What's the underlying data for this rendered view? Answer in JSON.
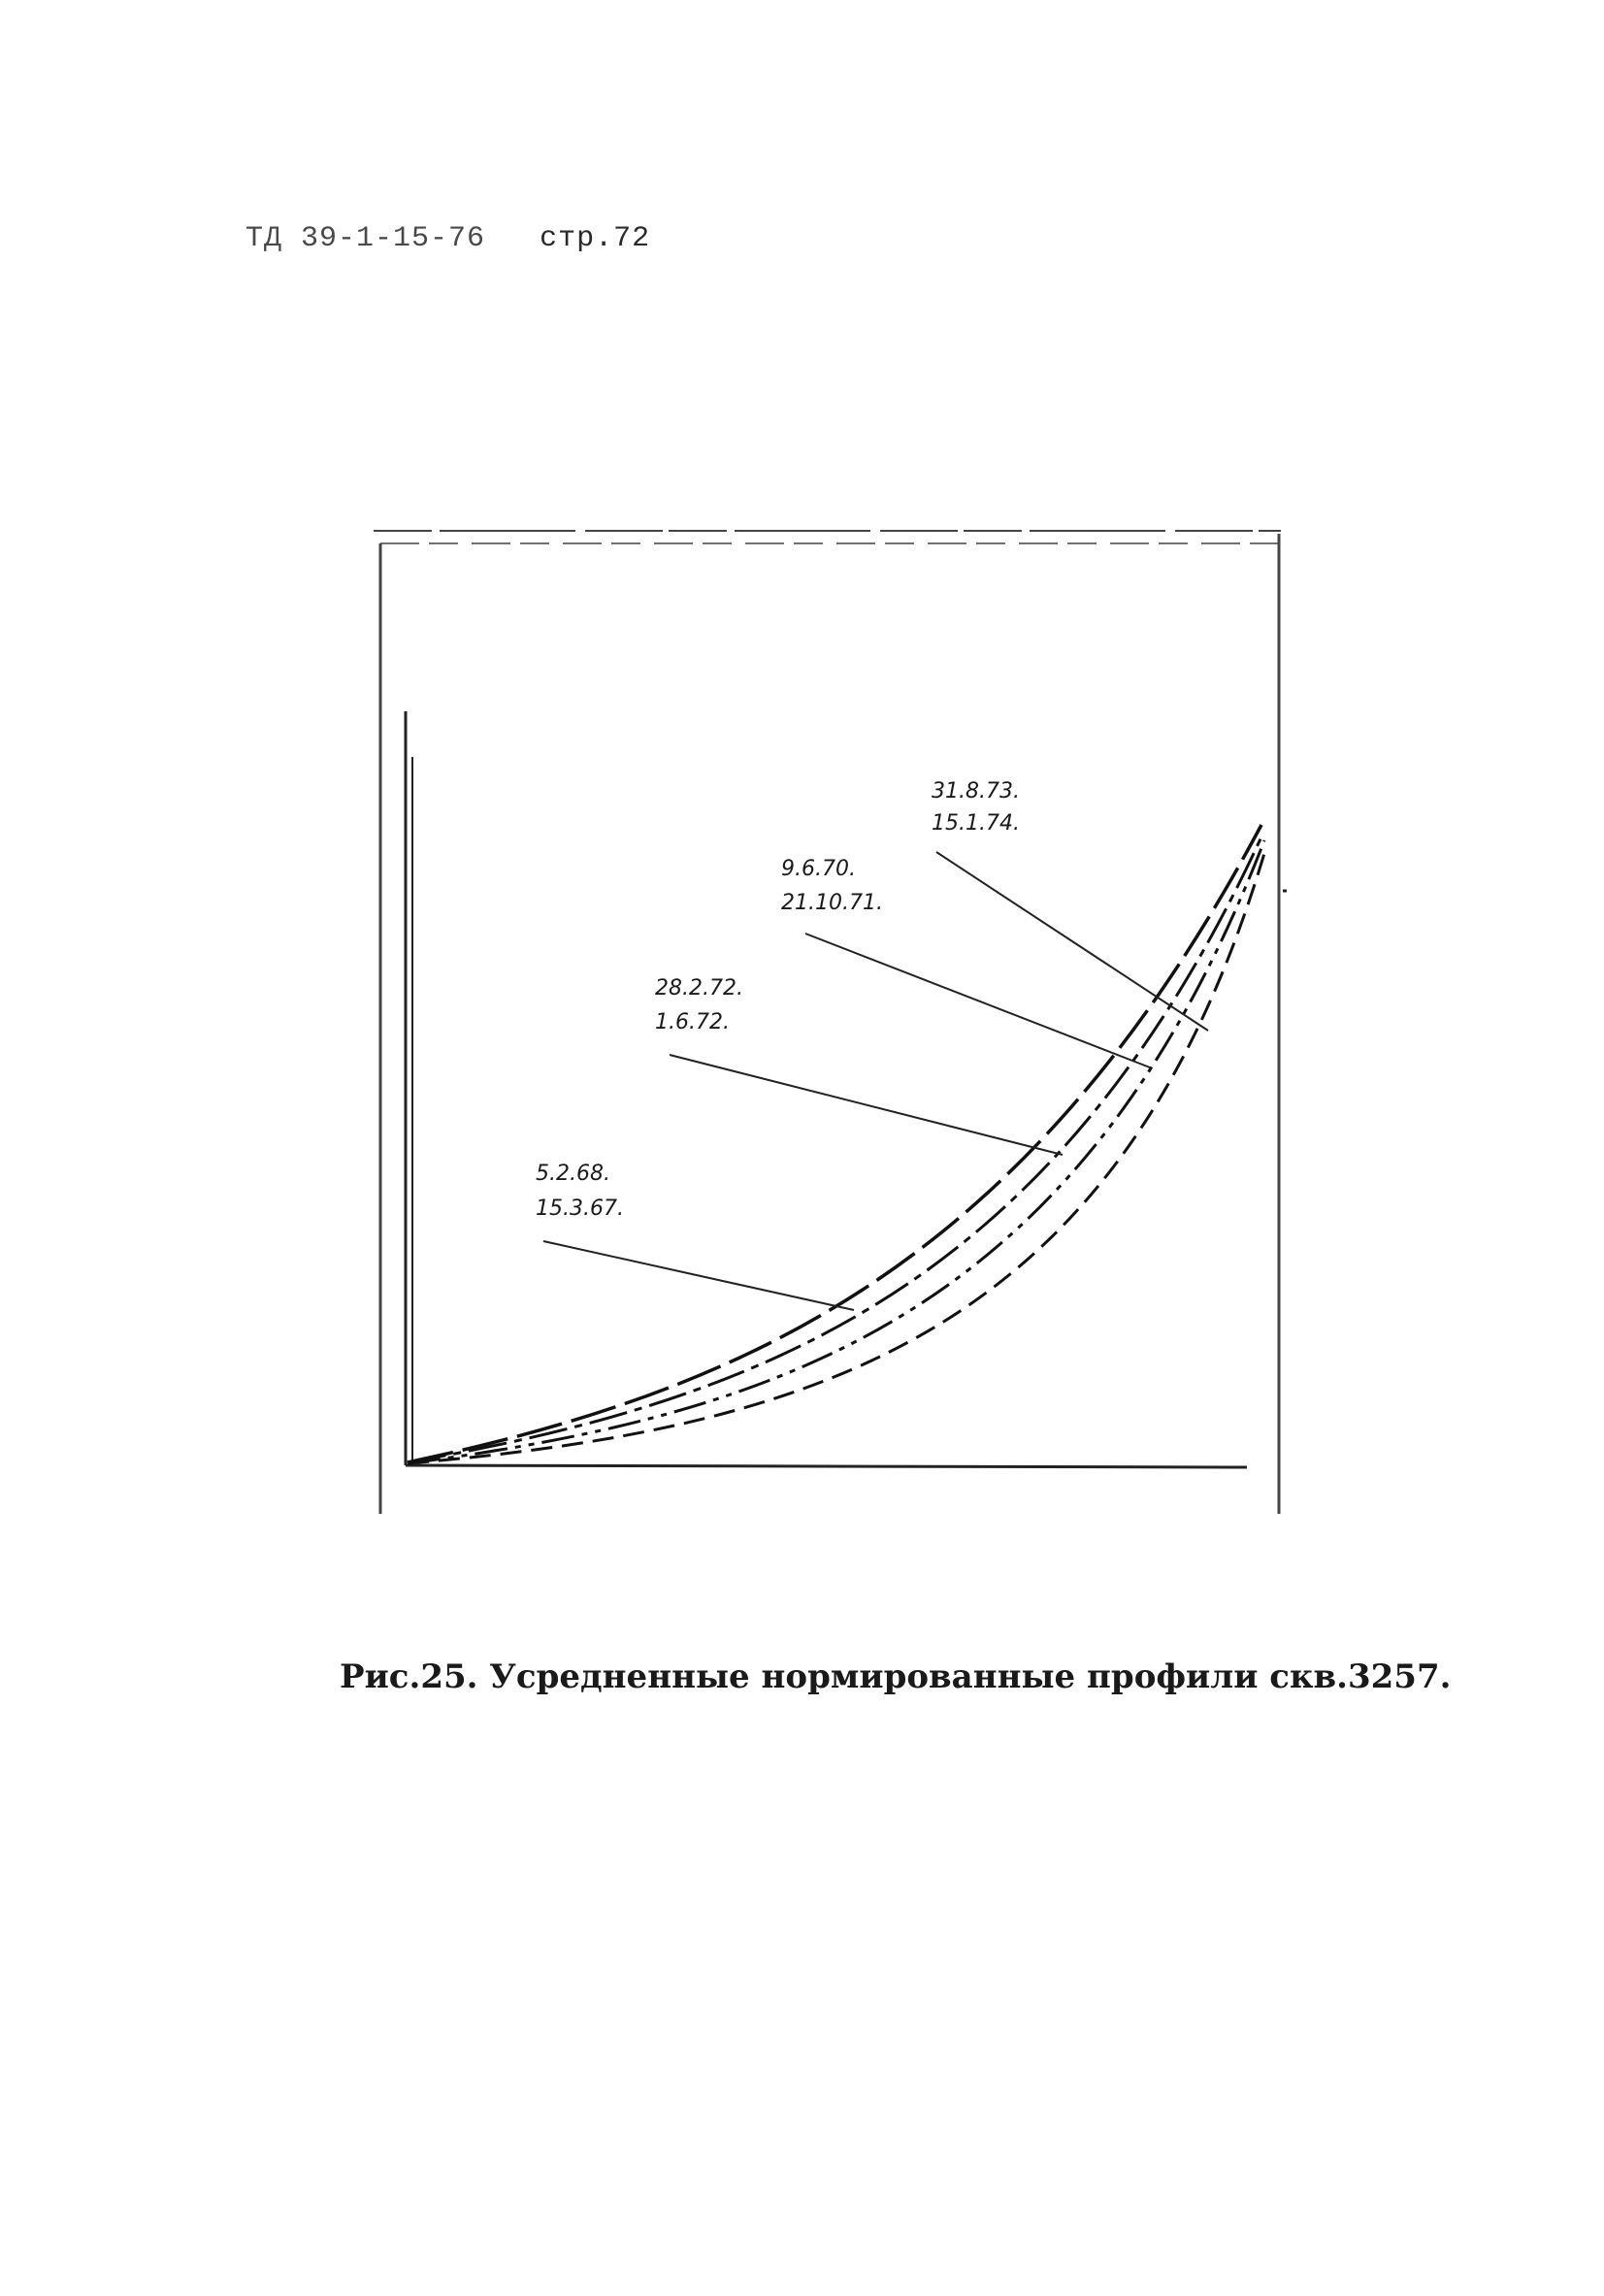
{
  "header": {
    "doc_code": "ТД 39-1-15-76",
    "page_ref": "стр.72"
  },
  "figure": {
    "labels": [
      {
        "line1": "31.8.73.",
        "line2": "15.1.74."
      },
      {
        "line1": "9.6.70.",
        "line2": "21.10.71."
      },
      {
        "line1": "28.2.72.",
        "line2": "1.6.72."
      },
      {
        "line1": "5.2.68.",
        "line2": "15.3.67."
      }
    ]
  },
  "caption": {
    "text": "Рис.25. Усредненные нормированные профили скв.3257."
  }
}
